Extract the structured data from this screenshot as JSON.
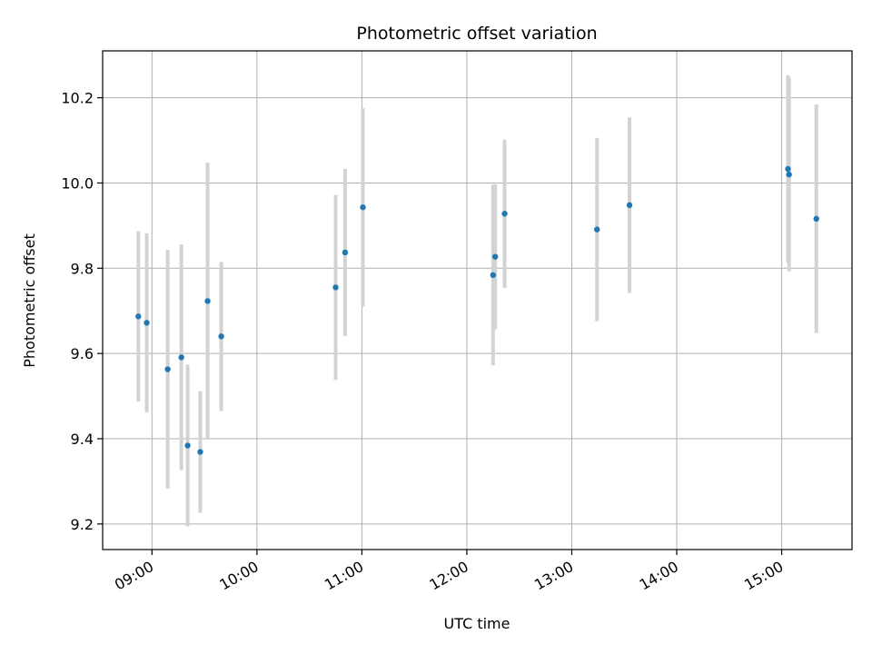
{
  "chart_data": {
    "type": "scatter",
    "title": "Photometric offset variation",
    "xlabel": "UTC time",
    "ylabel": "Photometric offset",
    "x_unit": "hours UTC",
    "xlim": [
      8.53,
      15.67
    ],
    "ylim": [
      9.14,
      10.31
    ],
    "grid": true,
    "x_ticks": [
      {
        "value": 9,
        "label": "09:00"
      },
      {
        "value": 10,
        "label": "10:00"
      },
      {
        "value": 11,
        "label": "11:00"
      },
      {
        "value": 12,
        "label": "12:00"
      },
      {
        "value": 13,
        "label": "13:00"
      },
      {
        "value": 14,
        "label": "14:00"
      },
      {
        "value": 15,
        "label": "15:00"
      }
    ],
    "y_ticks": [
      {
        "value": 9.2,
        "label": "9.2"
      },
      {
        "value": 9.4,
        "label": "9.4"
      },
      {
        "value": 9.6,
        "label": "9.6"
      },
      {
        "value": 9.8,
        "label": "9.8"
      },
      {
        "value": 10.0,
        "label": "10.0"
      },
      {
        "value": 10.2,
        "label": "10.2"
      }
    ],
    "marker_color": "#1f77b4",
    "errorbar_color": "#d3d3d3",
    "points": [
      {
        "x": 8.87,
        "y": 9.687,
        "err": 0.2
      },
      {
        "x": 8.95,
        "y": 9.672,
        "err": 0.21
      },
      {
        "x": 9.15,
        "y": 9.563,
        "err": 0.28
      },
      {
        "x": 9.28,
        "y": 9.591,
        "err": 0.265
      },
      {
        "x": 9.34,
        "y": 9.384,
        "err": 0.19
      },
      {
        "x": 9.46,
        "y": 9.369,
        "err": 0.143
      },
      {
        "x": 9.53,
        "y": 9.723,
        "err": 0.325
      },
      {
        "x": 9.66,
        "y": 9.64,
        "err": 0.175
      },
      {
        "x": 10.75,
        "y": 9.755,
        "err": 0.217
      },
      {
        "x": 10.84,
        "y": 9.837,
        "err": 0.196
      },
      {
        "x": 11.01,
        "y": 9.943,
        "err": 0.233
      },
      {
        "x": 12.25,
        "y": 9.784,
        "err": 0.212
      },
      {
        "x": 12.27,
        "y": 9.827,
        "err": 0.17
      },
      {
        "x": 12.36,
        "y": 9.928,
        "err": 0.174
      },
      {
        "x": 13.24,
        "y": 9.891,
        "err": 0.215
      },
      {
        "x": 13.55,
        "y": 9.948,
        "err": 0.206
      },
      {
        "x": 15.06,
        "y": 10.033,
        "err": 0.22
      },
      {
        "x": 15.07,
        "y": 10.02,
        "err": 0.227
      },
      {
        "x": 15.33,
        "y": 9.916,
        "err": 0.268
      }
    ]
  }
}
